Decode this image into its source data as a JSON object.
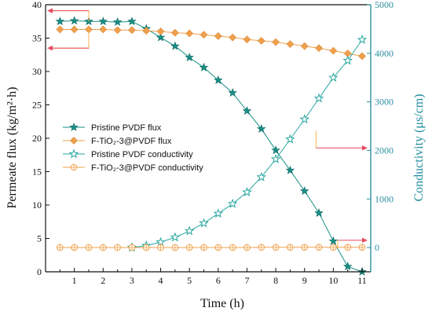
{
  "chart_data": {
    "type": "line",
    "xlabel": "Time (h)",
    "ylabel_left": "Permeate flux (kg/m²·h)",
    "ylabel_right": "Conductivity (μs/cm)",
    "xlim": [
      0,
      11.3
    ],
    "ylim_left": [
      0,
      40
    ],
    "ylim_right": [
      -500,
      5000
    ],
    "xticks": [
      "1",
      "2",
      "3",
      "4",
      "5",
      "6",
      "7",
      "8",
      "9",
      "10",
      "11"
    ],
    "yticks_left": [
      "0",
      "5",
      "10",
      "15",
      "20",
      "25",
      "30",
      "35",
      "40"
    ],
    "yticks_right": [
      "0",
      "1000",
      "2000",
      "3000",
      "4000",
      "5000"
    ],
    "legend_position": "center-left",
    "series": [
      {
        "name": "Pristine PVDF flux",
        "axis": "left",
        "marker": "star-filled",
        "color": "#1a8f86",
        "x": [
          0.5,
          1.0,
          1.5,
          2.0,
          2.5,
          3.0,
          3.5,
          4.0,
          4.5,
          5.0,
          5.5,
          6.0,
          6.5,
          7.0,
          7.5,
          8.0,
          8.5,
          9.0,
          9.5,
          10.0,
          10.5,
          11.0
        ],
        "values": [
          37.5,
          37.6,
          37.5,
          37.5,
          37.4,
          37.5,
          36.4,
          35.1,
          33.8,
          32.1,
          30.6,
          28.7,
          26.8,
          24.1,
          21.4,
          18.2,
          15.2,
          12.1,
          8.8,
          4.6,
          0.8,
          0.0
        ]
      },
      {
        "name": "F-TiO₂-3@PVDF flux",
        "axis": "left",
        "marker": "diamond-filled",
        "color": "#f0a04b",
        "x": [
          0.5,
          1.0,
          1.5,
          2.0,
          2.5,
          3.0,
          3.5,
          4.0,
          4.5,
          5.0,
          5.5,
          6.0,
          6.5,
          7.0,
          7.5,
          8.0,
          8.5,
          9.0,
          9.5,
          10.0,
          10.5,
          11.0
        ],
        "values": [
          36.3,
          36.3,
          36.3,
          36.3,
          36.2,
          36.2,
          36.1,
          36.0,
          35.8,
          35.7,
          35.5,
          35.3,
          35.1,
          34.8,
          34.6,
          34.4,
          34.1,
          33.8,
          33.5,
          33.1,
          32.7,
          32.3
        ]
      },
      {
        "name": "Pristine PVDF conductivity",
        "axis": "right",
        "marker": "star-open",
        "color": "#2aa7a0",
        "x": [
          3.0,
          3.5,
          4.0,
          4.5,
          5.0,
          5.5,
          6.0,
          6.5,
          7.0,
          7.5,
          8.0,
          8.5,
          9.0,
          9.5,
          10.0,
          10.5,
          11.0
        ],
        "values": [
          0,
          40,
          110,
          210,
          340,
          500,
          700,
          900,
          1140,
          1450,
          1820,
          2230,
          2640,
          3070,
          3500,
          3850,
          4280
        ]
      },
      {
        "name": "F-TiO₂-3@PVDF conductivity",
        "axis": "right",
        "marker": "circle-plus-open",
        "color": "#f0a04b",
        "x": [
          0.5,
          1.0,
          1.5,
          2.0,
          2.5,
          3.0,
          3.5,
          4.0,
          4.5,
          5.0,
          5.5,
          6.0,
          6.5,
          7.0,
          7.5,
          8.0,
          8.5,
          9.0,
          9.5,
          10.0,
          10.5,
          11.0
        ],
        "values": [
          0,
          0,
          0,
          0,
          0,
          0,
          0,
          0,
          0,
          0,
          0,
          0,
          0,
          0,
          5,
          5,
          5,
          5,
          5,
          5,
          5,
          5
        ]
      }
    ],
    "annotations": [
      {
        "type": "arrow",
        "color": "#e84a5f",
        "direction": "left",
        "points_to": "left-axis",
        "from_x": 1.5,
        "at_y_left": 39.1,
        "tail_to_y_left": 37.5
      },
      {
        "type": "arrow",
        "color": "#e84a5f",
        "direction": "left",
        "points_to": "left-axis",
        "from_x": 1.5,
        "at_y_left": 33.5,
        "tail_to_y_left": 36.3
      },
      {
        "type": "arrow",
        "color": "#e84a5f",
        "direction": "right",
        "points_to": "right-axis",
        "from_x": 9.4,
        "at_y_right": 2050,
        "tail_to_y_right": 2400
      },
      {
        "type": "arrow",
        "color": "#e84a5f",
        "direction": "right",
        "points_to": "right-axis",
        "from_x": 10.15,
        "at_y_right": 150,
        "tail_to_y_right": -20
      }
    ]
  }
}
